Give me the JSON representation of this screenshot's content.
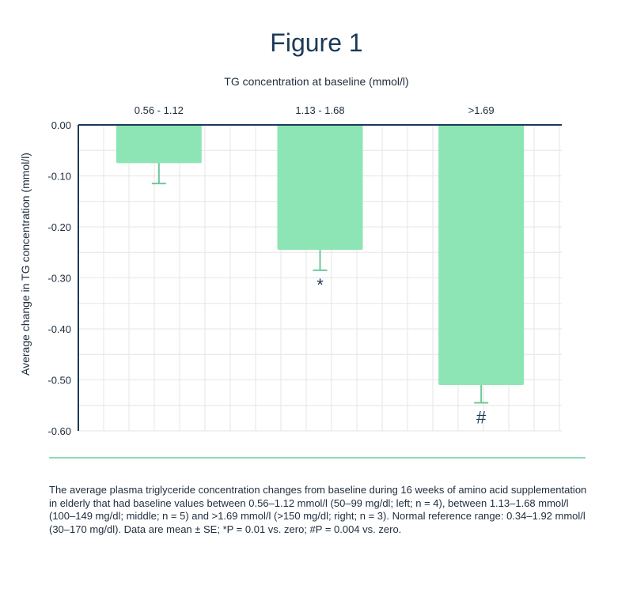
{
  "figure_title": "Figure 1",
  "caption": "The average plasma triglyceride concentration changes from baseline during 16 weeks of amino acid supplementation in elderly that had baseline values between 0.56–1.12 mmol/l (50–99 mg/dl; left; n = 4), between 1.13–1.68 mmol/l (100–149 mg/dl; middle; n = 5) and >1.69 mmol/l (>150 mg/dl; right; n = 3). Normal reference range: 0.34–1.92 mmol/l (30–170 mg/dl). Data are mean ± SE; *P = 0.01 vs. zero; #P = 0.004 vs. zero.",
  "colors": {
    "bar": "#8de5b5",
    "axis": "#1b3a57",
    "grid": "#e6e6e6",
    "error": "#6fc79c"
  },
  "chart_data": {
    "type": "bar",
    "xlabel": "TG concentration at baseline (mmol/l)",
    "ylabel": "Average change in TG concentration (mmol/l)",
    "categories": [
      "0.56 - 1.12",
      "1.13 - 1.68",
      ">1.69"
    ],
    "values": [
      -0.075,
      -0.245,
      -0.51
    ],
    "errors": [
      0.04,
      0.04,
      0.035
    ],
    "annotations": [
      "",
      "*",
      "#"
    ],
    "ylim": [
      -0.6,
      0.0
    ],
    "yticks": [
      0.0,
      -0.1,
      -0.2,
      -0.3,
      -0.4,
      -0.5,
      -0.6
    ],
    "ytick_labels": [
      "0.00",
      "-0.10",
      "-0.20",
      "-0.30",
      "-0.40",
      "-0.50",
      "-0.60"
    ],
    "grid": true
  }
}
